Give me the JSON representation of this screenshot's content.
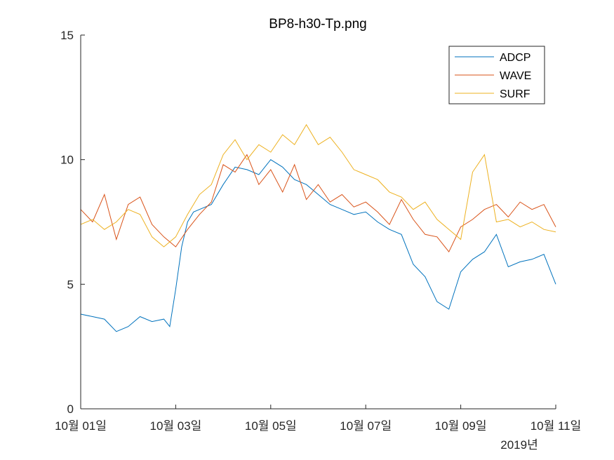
{
  "chart_data": {
    "type": "line",
    "title": "BP8-h30-Tp.png",
    "xlabel": "",
    "ylabel": "",
    "x_range": [
      "2019-10-01 00:00",
      "2019-10-11 00:00"
    ],
    "ylim": [
      0,
      15
    ],
    "yticks": [
      0,
      5,
      10,
      15
    ],
    "xtick_labels": [
      "10월 01일",
      "10월 03일",
      "10월 05일",
      "10월 07일",
      "10월 09일",
      "10월 11일"
    ],
    "x_secondary_label": "2019년",
    "grid": false,
    "legend_position": "top-right",
    "series": [
      {
        "name": "ADCP",
        "color": "#0072BD",
        "x": [
          "2019-10-01 00:00",
          "2019-10-01 06:00",
          "2019-10-01 12:00",
          "2019-10-01 18:00",
          "2019-10-02 00:00",
          "2019-10-02 06:00",
          "2019-10-02 12:00",
          "2019-10-02 18:00",
          "2019-10-02 21:00",
          "2019-10-03 00:00",
          "2019-10-03 03:00",
          "2019-10-03 06:00",
          "2019-10-03 09:00",
          "2019-10-03 12:00",
          "2019-10-03 18:00",
          "2019-10-04 00:00",
          "2019-10-04 06:00",
          "2019-10-04 12:00",
          "2019-10-04 18:00",
          "2019-10-05 00:00",
          "2019-10-05 06:00",
          "2019-10-05 12:00",
          "2019-10-05 18:00",
          "2019-10-06 00:00",
          "2019-10-06 06:00",
          "2019-10-06 12:00",
          "2019-10-06 18:00",
          "2019-10-07 00:00",
          "2019-10-07 06:00",
          "2019-10-07 12:00",
          "2019-10-07 18:00",
          "2019-10-08 00:00",
          "2019-10-08 06:00",
          "2019-10-08 12:00",
          "2019-10-08 18:00",
          "2019-10-09 00:00",
          "2019-10-09 06:00",
          "2019-10-09 12:00",
          "2019-10-09 18:00",
          "2019-10-10 00:00",
          "2019-10-10 06:00",
          "2019-10-10 12:00",
          "2019-10-10 18:00",
          "2019-10-11 00:00"
        ],
        "y": [
          3.8,
          3.7,
          3.6,
          3.1,
          3.3,
          3.7,
          3.5,
          3.6,
          3.3,
          4.8,
          6.5,
          7.5,
          7.9,
          8.0,
          8.2,
          9.0,
          9.7,
          9.6,
          9.4,
          10.0,
          9.7,
          9.2,
          9.0,
          8.6,
          8.2,
          8.0,
          7.8,
          7.9,
          7.5,
          7.2,
          7.0,
          5.8,
          5.3,
          4.3,
          4.0,
          5.5,
          6.0,
          6.3,
          7.0,
          5.7,
          5.9,
          6.0,
          6.2,
          5.0
        ]
      },
      {
        "name": "WAVE",
        "color": "#D95319",
        "x": [
          "2019-10-01 00:00",
          "2019-10-01 06:00",
          "2019-10-01 12:00",
          "2019-10-01 18:00",
          "2019-10-02 00:00",
          "2019-10-02 06:00",
          "2019-10-02 12:00",
          "2019-10-02 18:00",
          "2019-10-03 00:00",
          "2019-10-03 06:00",
          "2019-10-03 12:00",
          "2019-10-03 18:00",
          "2019-10-04 00:00",
          "2019-10-04 06:00",
          "2019-10-04 12:00",
          "2019-10-04 18:00",
          "2019-10-05 00:00",
          "2019-10-05 06:00",
          "2019-10-05 12:00",
          "2019-10-05 18:00",
          "2019-10-06 00:00",
          "2019-10-06 06:00",
          "2019-10-06 12:00",
          "2019-10-06 18:00",
          "2019-10-07 00:00",
          "2019-10-07 06:00",
          "2019-10-07 12:00",
          "2019-10-07 18:00",
          "2019-10-08 00:00",
          "2019-10-08 06:00",
          "2019-10-08 12:00",
          "2019-10-08 18:00",
          "2019-10-09 00:00",
          "2019-10-09 06:00",
          "2019-10-09 12:00",
          "2019-10-09 18:00",
          "2019-10-10 00:00",
          "2019-10-10 06:00",
          "2019-10-10 12:00",
          "2019-10-10 18:00",
          "2019-10-11 00:00"
        ],
        "y": [
          8.0,
          7.5,
          8.6,
          6.8,
          8.2,
          8.5,
          7.4,
          6.9,
          6.5,
          7.2,
          7.8,
          8.3,
          9.8,
          9.5,
          10.2,
          9.0,
          9.6,
          8.7,
          9.8,
          8.4,
          9.0,
          8.3,
          8.6,
          8.1,
          8.3,
          7.9,
          7.4,
          8.4,
          7.6,
          7.0,
          6.9,
          6.3,
          7.3,
          7.6,
          8.0,
          8.2,
          7.7,
          8.3,
          8.0,
          8.2,
          7.3
        ]
      },
      {
        "name": "SURF",
        "color": "#EDB120",
        "x": [
          "2019-10-01 00:00",
          "2019-10-01 06:00",
          "2019-10-01 12:00",
          "2019-10-01 18:00",
          "2019-10-02 00:00",
          "2019-10-02 06:00",
          "2019-10-02 12:00",
          "2019-10-02 18:00",
          "2019-10-03 00:00",
          "2019-10-03 06:00",
          "2019-10-03 12:00",
          "2019-10-03 18:00",
          "2019-10-04 00:00",
          "2019-10-04 06:00",
          "2019-10-04 12:00",
          "2019-10-04 18:00",
          "2019-10-05 00:00",
          "2019-10-05 06:00",
          "2019-10-05 12:00",
          "2019-10-05 18:00",
          "2019-10-06 00:00",
          "2019-10-06 06:00",
          "2019-10-06 12:00",
          "2019-10-06 18:00",
          "2019-10-07 00:00",
          "2019-10-07 06:00",
          "2019-10-07 12:00",
          "2019-10-07 18:00",
          "2019-10-08 00:00",
          "2019-10-08 06:00",
          "2019-10-08 12:00",
          "2019-10-08 18:00",
          "2019-10-09 00:00",
          "2019-10-09 06:00",
          "2019-10-09 12:00",
          "2019-10-09 18:00",
          "2019-10-10 00:00",
          "2019-10-10 06:00",
          "2019-10-10 12:00",
          "2019-10-10 18:00",
          "2019-10-11 00:00"
        ],
        "y": [
          7.4,
          7.6,
          7.2,
          7.5,
          8.0,
          7.8,
          6.9,
          6.5,
          6.9,
          7.8,
          8.6,
          9.0,
          10.2,
          10.8,
          10.0,
          10.6,
          10.3,
          11.0,
          10.6,
          11.4,
          10.6,
          10.9,
          10.3,
          9.6,
          9.4,
          9.2,
          8.7,
          8.5,
          8.0,
          8.3,
          7.6,
          7.2,
          6.8,
          9.5,
          10.2,
          7.5,
          7.6,
          7.3,
          7.5,
          7.2,
          7.1
        ]
      }
    ]
  }
}
